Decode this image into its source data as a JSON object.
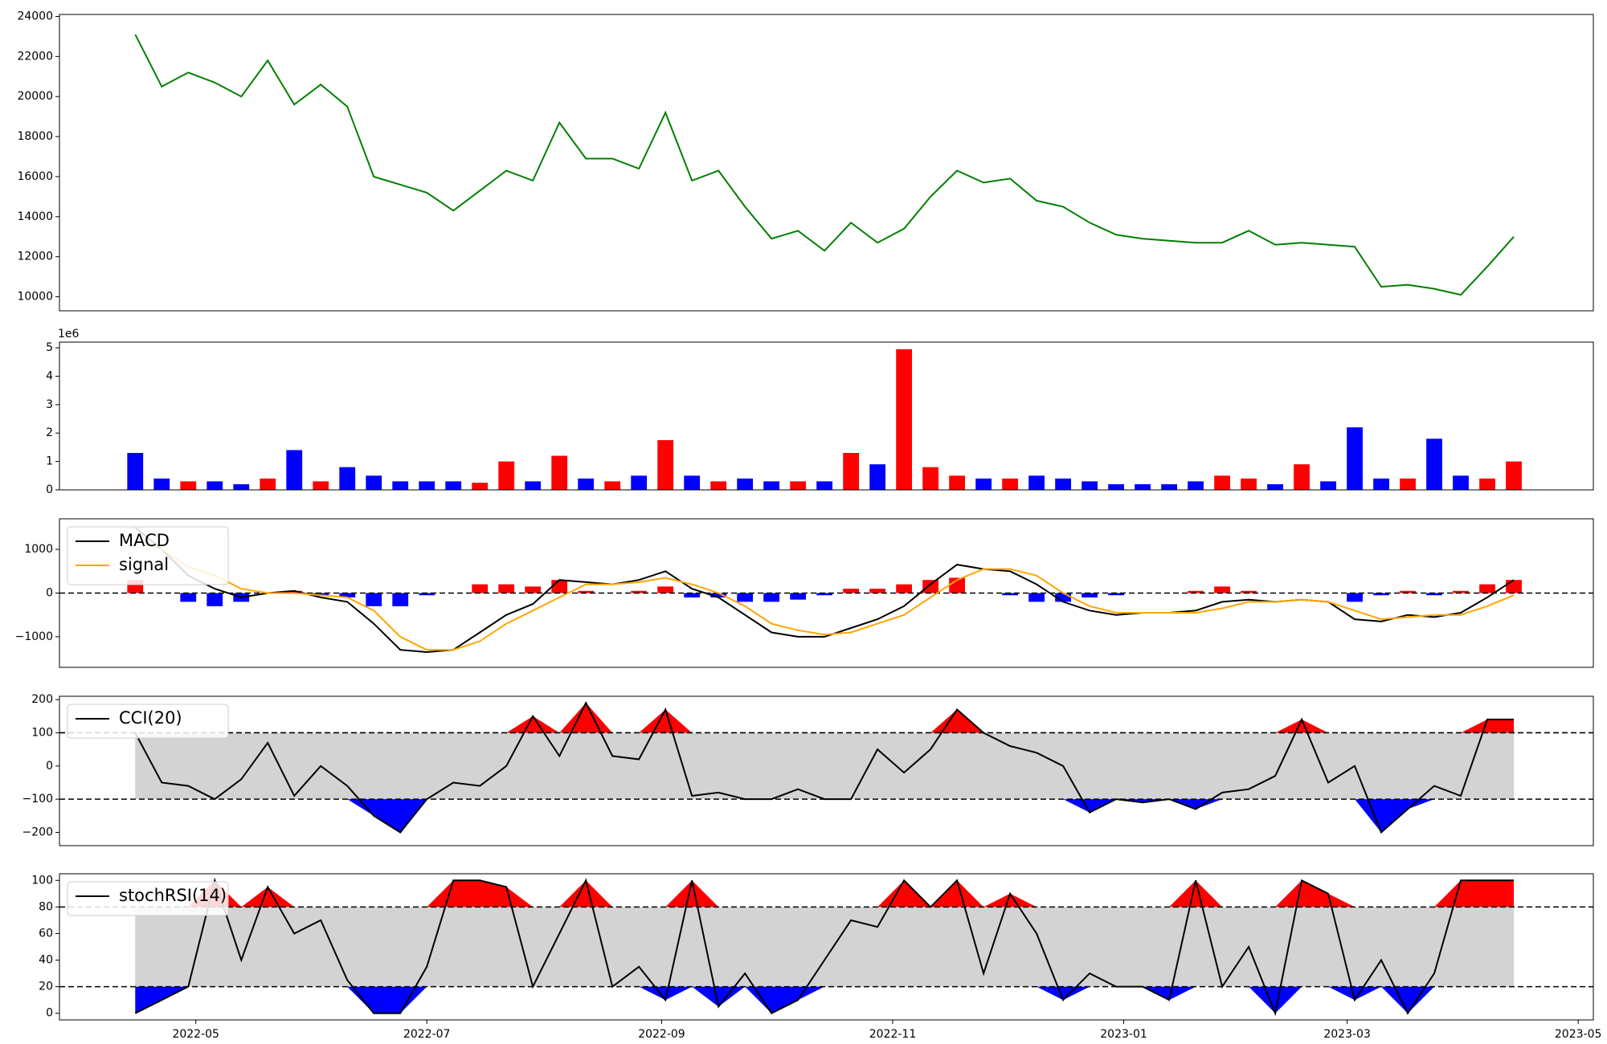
{
  "chart_data": [
    {
      "type": "line",
      "x": [
        "2022-04-15",
        "2022-04-22",
        "2022-04-29",
        "2022-05-06",
        "2022-05-13",
        "2022-05-20",
        "2022-05-27",
        "2022-06-03",
        "2022-06-10",
        "2022-06-17",
        "2022-06-24",
        "2022-07-01",
        "2022-07-08",
        "2022-07-15",
        "2022-07-22",
        "2022-07-29",
        "2022-08-05",
        "2022-08-12",
        "2022-08-19",
        "2022-08-26",
        "2022-09-02",
        "2022-09-09",
        "2022-09-16",
        "2022-09-23",
        "2022-09-30",
        "2022-10-07",
        "2022-10-14",
        "2022-10-21",
        "2022-10-28",
        "2022-11-04",
        "2022-11-11",
        "2022-11-18",
        "2022-11-25",
        "2022-12-02",
        "2022-12-09",
        "2022-12-16",
        "2022-12-23",
        "2022-12-30",
        "2023-01-06",
        "2023-01-13",
        "2023-01-20",
        "2023-01-27",
        "2023-02-03",
        "2023-02-10",
        "2023-02-17",
        "2023-02-24",
        "2023-03-03",
        "2023-03-10",
        "2023-03-17",
        "2023-03-24",
        "2023-03-31",
        "2023-04-07",
        "2023-04-14"
      ],
      "xlim": [
        "2022-03-26",
        "2023-05-05"
      ],
      "series": [
        {
          "color": "green",
          "values": [
            23100,
            20500,
            21200,
            20700,
            20000,
            21800,
            19600,
            20600,
            19500,
            16000,
            15600,
            15200,
            14300,
            15300,
            16300,
            15800,
            18700,
            16900,
            16900,
            16400,
            19200,
            15800,
            16300,
            14500,
            12900,
            13300,
            12300,
            13700,
            12700,
            13400,
            15000,
            16300,
            15700,
            15900,
            14800,
            14500,
            13700,
            13100,
            12900,
            12800,
            12700,
            12700,
            13300,
            12600,
            12700,
            12600,
            12500,
            10500,
            10600,
            10400,
            10100,
            11500,
            13000
          ]
        }
      ],
      "ylim": [
        9300,
        24100
      ],
      "yticks": [
        10000,
        12000,
        14000,
        16000,
        18000,
        20000,
        22000,
        24000
      ]
    },
    {
      "type": "bar",
      "offset_label": "1e6",
      "up_color": "red",
      "down_color": "blue",
      "values": [
        1.3,
        0.4,
        0.3,
        0.3,
        0.2,
        0.4,
        1.4,
        0.3,
        0.8,
        0.5,
        0.3,
        0.3,
        0.3,
        0.25,
        1.0,
        0.3,
        1.2,
        0.4,
        0.3,
        0.5,
        1.75,
        0.5,
        0.3,
        0.4,
        0.3,
        0.3,
        0.3,
        1.3,
        0.9,
        4.95,
        0.8,
        0.5,
        0.4,
        0.4,
        0.5,
        0.4,
        0.3,
        0.2,
        0.2,
        0.2,
        0.3,
        0.5,
        0.4,
        0.2,
        0.9,
        0.3,
        2.2,
        0.4,
        0.4,
        1.8,
        0.5,
        0.4,
        1.0
      ],
      "ylim": [
        0,
        5.2
      ],
      "yticks": [
        0,
        1,
        2,
        3,
        4,
        5
      ]
    },
    {
      "type": "macd",
      "series": [
        {
          "name": "MACD",
          "color": "black",
          "values": [
            1500,
            1000,
            400,
            100,
            -100,
            0,
            50,
            -100,
            -200,
            -700,
            -1300,
            -1350,
            -1300,
            -900,
            -500,
            -250,
            300,
            250,
            200,
            300,
            500,
            100,
            -100,
            -500,
            -900,
            -1000,
            -1000,
            -800,
            -600,
            -300,
            200,
            650,
            550,
            500,
            200,
            -200,
            -400,
            -500,
            -450,
            -450,
            -400,
            -200,
            -150,
            -200,
            -150,
            -200,
            -600,
            -650,
            -500,
            -550,
            -450,
            -100,
            300
          ]
        },
        {
          "name": "signal",
          "color": "orange",
          "values": [
            1200,
            1000,
            600,
            400,
            100,
            0,
            0,
            -50,
            -100,
            -400,
            -1000,
            -1300,
            -1300,
            -1100,
            -700,
            -400,
            -100,
            200,
            200,
            250,
            350,
            200,
            0,
            -300,
            -700,
            -850,
            -950,
            -900,
            -700,
            -500,
            -100,
            300,
            550,
            550,
            400,
            0,
            -300,
            -450,
            -450,
            -450,
            -450,
            -350,
            -200,
            -200,
            -150,
            -200,
            -400,
            -600,
            -550,
            -500,
            -500,
            -300,
            -50
          ]
        }
      ],
      "histogram": {
        "pos_color": "red",
        "neg_color": "blue",
        "values": [
          300,
          0,
          -200,
          -300,
          -200,
          0,
          50,
          -50,
          -100,
          -300,
          -300,
          -50,
          0,
          200,
          200,
          150,
          300,
          50,
          0,
          50,
          150,
          -100,
          -100,
          -200,
          -200,
          -150,
          -50,
          100,
          100,
          200,
          300,
          350,
          0,
          -50,
          -200,
          -200,
          -100,
          -50,
          0,
          0,
          50,
          150,
          50,
          0,
          0,
          0,
          -200,
          -50,
          50,
          -50,
          50,
          200,
          300
        ]
      },
      "hlines": [
        0
      ],
      "ylim": [
        -1700,
        1700
      ],
      "yticks": [
        {
          "value": -1000,
          "label": "−1000"
        },
        0,
        1000
      ]
    },
    {
      "type": "oscillator",
      "series": [
        {
          "name": "CCI(20)",
          "color": "black",
          "values": [
            100,
            -50,
            -60,
            -100,
            -40,
            70,
            -90,
            0,
            -60,
            -150,
            -200,
            -100,
            -50,
            -60,
            0,
            150,
            30,
            190,
            30,
            20,
            170,
            -90,
            -80,
            -100,
            -100,
            -70,
            -100,
            -100,
            50,
            -20,
            50,
            170,
            100,
            60,
            40,
            0,
            -140,
            -100,
            -110,
            -100,
            -130,
            -80,
            -70,
            -30,
            140,
            -50,
            0,
            -200,
            -130,
            -60,
            -90,
            140,
            140
          ]
        }
      ],
      "hlines": [
        100,
        -100
      ],
      "upper_color": "red",
      "lower_color": "blue",
      "band_color": "lightgray",
      "ylim": [
        -240,
        210
      ],
      "yticks": [
        {
          "value": -200,
          "label": "−200"
        },
        {
          "value": -100,
          "label": "−100"
        },
        0,
        100,
        200
      ]
    },
    {
      "type": "oscillator",
      "series": [
        {
          "name": "stochRSI(14)",
          "color": "black",
          "values": [
            0,
            10,
            20,
            100,
            40,
            95,
            60,
            70,
            25,
            0,
            0,
            35,
            100,
            100,
            95,
            20,
            60,
            100,
            20,
            35,
            10,
            100,
            5,
            30,
            0,
            10,
            40,
            70,
            65,
            100,
            80,
            100,
            30,
            90,
            60,
            10,
            30,
            20,
            20,
            10,
            100,
            20,
            50,
            0,
            100,
            90,
            10,
            40,
            0,
            30,
            100,
            100,
            100
          ]
        }
      ],
      "hlines": [
        80,
        20
      ],
      "upper_color": "red",
      "lower_color": "blue",
      "band_color": "lightgray",
      "ylim": [
        -5,
        105
      ],
      "yticks": [
        0,
        20,
        40,
        60,
        80,
        100
      ],
      "xticks": [
        {
          "value": "2022-05-01",
          "label": "2022-05"
        },
        {
          "value": "2022-07-01",
          "label": "2022-07"
        },
        {
          "value": "2022-09-01",
          "label": "2022-09"
        },
        {
          "value": "2022-11-01",
          "label": "2022-11"
        },
        {
          "value": "2023-01-01",
          "label": "2023-01"
        },
        {
          "value": "2023-03-01",
          "label": "2023-03"
        },
        {
          "value": "2023-05-01",
          "label": "2023-05"
        }
      ]
    }
  ]
}
